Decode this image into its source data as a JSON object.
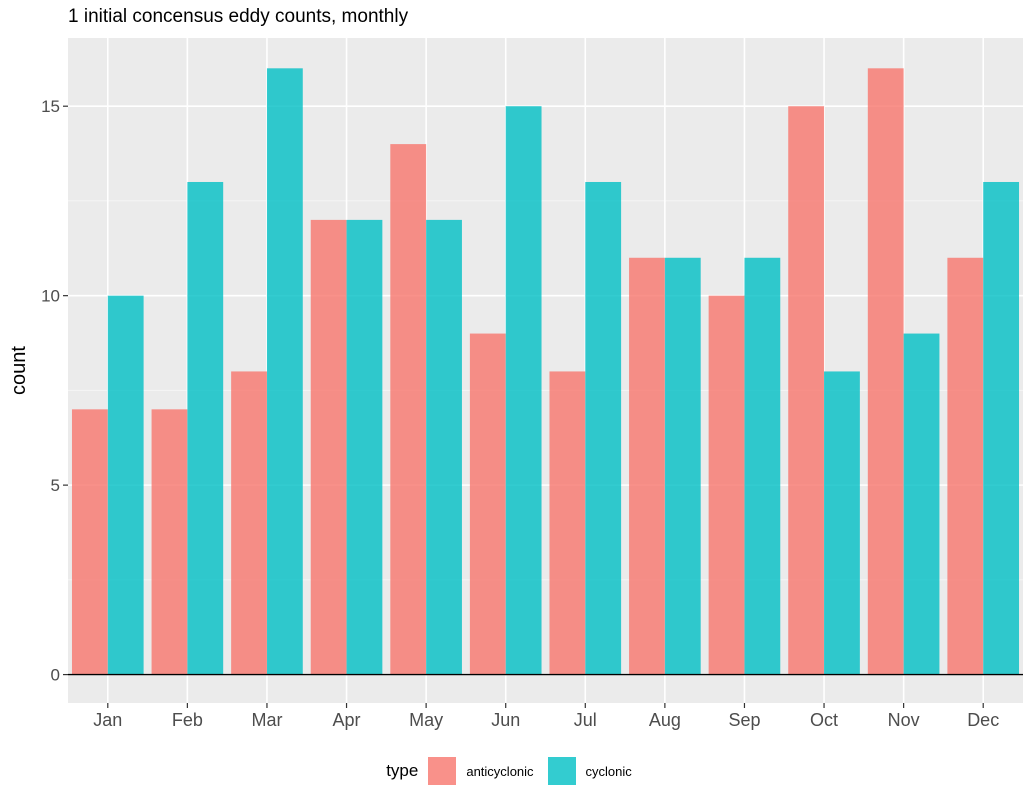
{
  "chart_data": {
    "type": "bar",
    "title": "1 initial concensus eddy counts, monthly",
    "xlabel": "",
    "ylabel": "count",
    "categories": [
      "Jan",
      "Feb",
      "Mar",
      "Apr",
      "May",
      "Jun",
      "Jul",
      "Aug",
      "Sep",
      "Oct",
      "Nov",
      "Dec"
    ],
    "series": [
      {
        "name": "anticyclonic",
        "color": "#F8766D",
        "values": [
          7,
          7,
          8,
          12,
          14,
          9,
          8,
          11,
          10,
          15,
          16,
          11
        ]
      },
      {
        "name": "cyclonic",
        "color": "#00BFC4",
        "values": [
          10,
          13,
          16,
          12,
          12,
          15,
          13,
          11,
          11,
          8,
          9,
          13
        ]
      }
    ],
    "ylim": [
      -0.75,
      16.8
    ],
    "yticks": [
      0,
      5,
      10,
      15
    ],
    "grid": true,
    "legend": {
      "title": "type",
      "placement": "bottom"
    }
  }
}
